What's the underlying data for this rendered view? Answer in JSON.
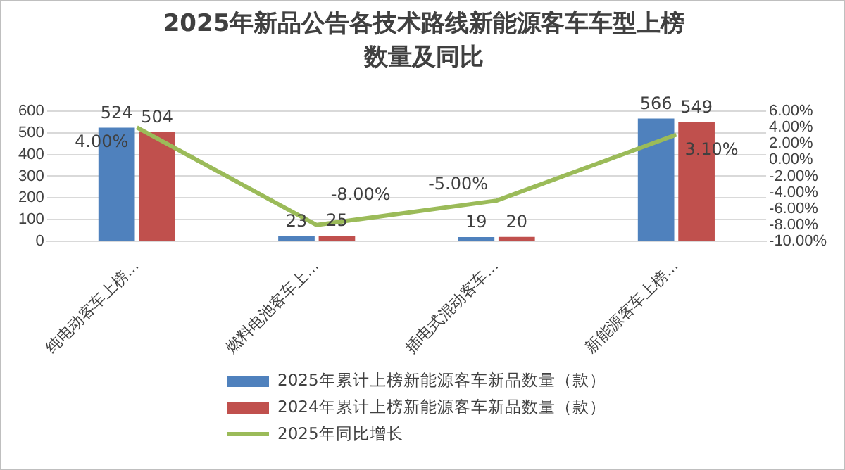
{
  "chart_data": {
    "type": "bar",
    "title": "2025年新品公告各技术路线新能源客车车型上榜数量及同比",
    "categories": [
      "纯电动客车上榜…",
      "燃料电池客车上…",
      "插电式混动客车…",
      "新能源客车上榜…"
    ],
    "series": [
      {
        "name": "2025年累计上榜新能源客车新品数量（款）",
        "color": "#4f81bd",
        "values": [
          524,
          23,
          19,
          566
        ],
        "value_labels": [
          "524",
          "23",
          "19",
          "566"
        ]
      },
      {
        "name": "2024年累计上榜新能源客车新品数量（款）",
        "color": "#c0504d",
        "values": [
          504,
          25,
          20,
          549
        ],
        "value_labels": [
          "504",
          "25",
          "20",
          "549"
        ]
      },
      {
        "name": "2025年同比增长",
        "type": "line",
        "axis": "y2",
        "color": "#9bbb59",
        "values": [
          4,
          -8,
          -5,
          3.1
        ],
        "value_labels": [
          "4.00%",
          "-8.00%",
          "-5.00%",
          "3.10%"
        ]
      }
    ],
    "ylim": [
      0,
      600
    ],
    "yticks": [
      0,
      100,
      200,
      300,
      400,
      500,
      600
    ],
    "y2lim": [
      -10,
      6
    ],
    "y2ticks": [
      {
        "value": -10,
        "label": "-10.00%"
      },
      {
        "value": -8,
        "label": "-8.00%"
      },
      {
        "value": -6,
        "label": "-6.00%"
      },
      {
        "value": -4,
        "label": "-4.00%"
      },
      {
        "value": -2,
        "label": "-2.00%"
      },
      {
        "value": 0,
        "label": "0.00%"
      },
      {
        "value": 2,
        "label": "2.00%"
      },
      {
        "value": 4,
        "label": "4.00%"
      },
      {
        "value": 6,
        "label": "6.00%"
      }
    ],
    "grid": "y",
    "legend": "bottom",
    "marker": "none"
  }
}
